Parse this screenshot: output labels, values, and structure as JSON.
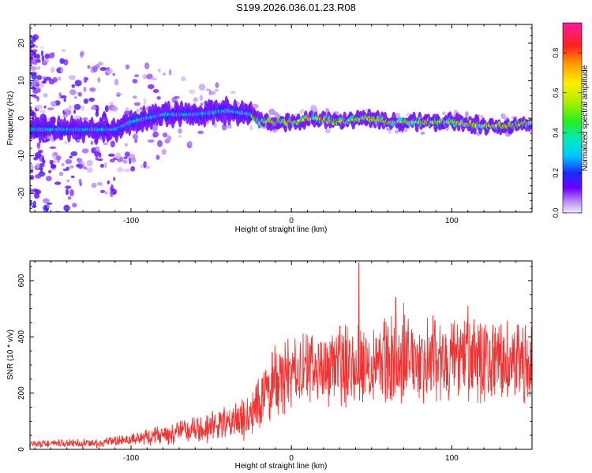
{
  "title": "S199.2026.036.01.23.R08",
  "chart_data": [
    {
      "type": "heatmap",
      "xlabel": "Height of straight line (km)",
      "ylabel": "Frequency (Hz)",
      "xlim": [
        -163,
        150
      ],
      "ylim": [
        -25,
        25
      ],
      "xticks": [
        -100,
        0,
        100
      ],
      "yticks": [
        -20,
        -10,
        0,
        10,
        20
      ],
      "ridge": [
        {
          "x": -160,
          "y": -3
        },
        {
          "x": -130,
          "y": -3
        },
        {
          "x": -110,
          "y": -3
        },
        {
          "x": -100,
          "y": -1
        },
        {
          "x": -90,
          "y": 0
        },
        {
          "x": -80,
          "y": 1
        },
        {
          "x": -60,
          "y": 1
        },
        {
          "x": -40,
          "y": 2
        },
        {
          "x": -25,
          "y": 1
        },
        {
          "x": -20,
          "y": -1
        },
        {
          "x": 0,
          "y": -1
        },
        {
          "x": 15,
          "y": 0
        },
        {
          "x": 30,
          "y": -1
        },
        {
          "x": 45,
          "y": 0
        },
        {
          "x": 60,
          "y": -1
        },
        {
          "x": 80,
          "y": -1
        },
        {
          "x": 100,
          "y": -1
        },
        {
          "x": 120,
          "y": -2
        },
        {
          "x": 140,
          "y": -2
        },
        {
          "x": 150,
          "y": -1
        }
      ]
    },
    {
      "type": "colorbar",
      "label": "Normalized spectral amplitude",
      "range": [
        0,
        0.95
      ],
      "ticks": [
        0.0,
        0.2,
        0.4,
        0.6,
        0.8
      ],
      "tick_labels": [
        "0.0",
        "0.2",
        "0.4",
        "0.6",
        "0.8"
      ]
    },
    {
      "type": "line",
      "xlabel": "Height of straight line (km)",
      "ylabel": "SNR (10 * v/v)",
      "xlim": [
        -163,
        150
      ],
      "ylim": [
        0,
        670
      ],
      "xticks": [
        -100,
        0,
        100
      ],
      "yticks": [
        0,
        200,
        400,
        600
      ],
      "color": "#ee3333",
      "envelope": [
        {
          "x": -163,
          "mean": 20,
          "amp": 12
        },
        {
          "x": -120,
          "mean": 22,
          "amp": 14
        },
        {
          "x": -100,
          "mean": 35,
          "amp": 20
        },
        {
          "x": -80,
          "mean": 55,
          "amp": 35
        },
        {
          "x": -60,
          "mean": 70,
          "amp": 45
        },
        {
          "x": -40,
          "mean": 90,
          "amp": 60
        },
        {
          "x": -25,
          "mean": 120,
          "amp": 80
        },
        {
          "x": -20,
          "mean": 180,
          "amp": 110
        },
        {
          "x": -10,
          "mean": 240,
          "amp": 120
        },
        {
          "x": 0,
          "mean": 270,
          "amp": 130
        },
        {
          "x": 20,
          "mean": 290,
          "amp": 130
        },
        {
          "x": 40,
          "mean": 310,
          "amp": 140
        },
        {
          "x": 60,
          "mean": 320,
          "amp": 150
        },
        {
          "x": 80,
          "mean": 320,
          "amp": 150
        },
        {
          "x": 100,
          "mean": 315,
          "amp": 150
        },
        {
          "x": 120,
          "mean": 310,
          "amp": 140
        },
        {
          "x": 150,
          "mean": 305,
          "amp": 140
        }
      ],
      "peaks": [
        {
          "x": 42,
          "y": 665
        },
        {
          "x": 70,
          "y": 520
        },
        {
          "x": 65,
          "y": 540
        },
        {
          "x": 110,
          "y": 510
        },
        {
          "x": -12,
          "y": 345
        }
      ]
    }
  ]
}
